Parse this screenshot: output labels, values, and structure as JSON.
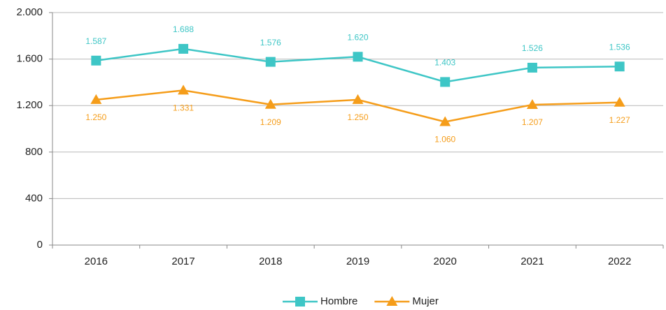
{
  "chart_data": {
    "type": "line",
    "categories": [
      "2016",
      "2017",
      "2018",
      "2019",
      "2020",
      "2021",
      "2022"
    ],
    "series": [
      {
        "name": "Hombre",
        "color": "#3ec6c6",
        "marker": "square",
        "values": [
          1587,
          1688,
          1576,
          1620,
          1403,
          1526,
          1536
        ],
        "value_labels": [
          "1.587",
          "1.688",
          "1.576",
          "1.620",
          "1.403",
          "1.526",
          "1.536"
        ]
      },
      {
        "name": "Mujer",
        "color": "#f59d1a",
        "marker": "triangle",
        "values": [
          1250,
          1331,
          1209,
          1250,
          1060,
          1207,
          1227
        ],
        "value_labels": [
          "1.250",
          "1.331",
          "1.209",
          "1.250",
          "1.060",
          "1.207",
          "1.227"
        ]
      }
    ],
    "ylim": [
      0,
      2000
    ],
    "yticks": [
      0,
      400,
      800,
      {
        "value": 1200,
        "label": "1.200"
      },
      {
        "value": 1600,
        "label": "1.600"
      },
      {
        "value": 2000,
        "label": "2.000"
      }
    ],
    "grid": true,
    "legend": "bottom"
  }
}
